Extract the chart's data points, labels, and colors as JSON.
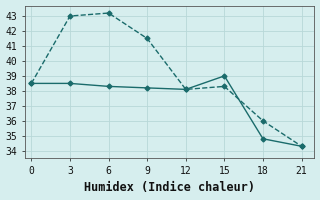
{
  "line1_x": [
    0,
    3,
    6,
    9,
    12,
    15,
    18,
    21
  ],
  "line1_y": [
    38.5,
    43.0,
    43.2,
    41.5,
    38.1,
    38.3,
    36.0,
    34.3
  ],
  "line2_x": [
    0,
    3,
    6,
    9,
    12,
    15,
    18,
    21
  ],
  "line2_y": [
    38.5,
    38.5,
    38.3,
    38.2,
    38.1,
    39.0,
    34.8,
    34.3
  ],
  "line1_style": "--",
  "line2_style": "-",
  "line_color": "#1a6b6b",
  "bg_color": "#d6eeee",
  "grid_color": "#b8d8d8",
  "xlabel": "Humidex (Indice chaleur)",
  "ylim": [
    33.5,
    43.7
  ],
  "xlim": [
    -0.5,
    22
  ],
  "yticks": [
    34,
    35,
    36,
    37,
    38,
    39,
    40,
    41,
    42,
    43
  ],
  "xticks": [
    0,
    3,
    6,
    9,
    12,
    15,
    18,
    21
  ],
  "marker": "D",
  "markersize": 2.5,
  "linewidth": 1.0,
  "xlabel_fontsize": 8.5,
  "tick_fontsize": 7
}
